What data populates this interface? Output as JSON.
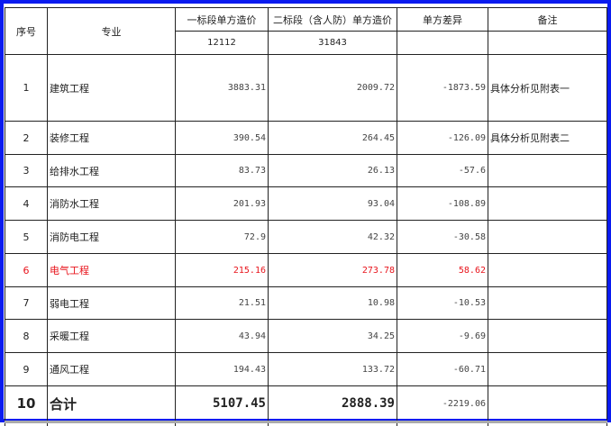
{
  "headers": {
    "seq": "序号",
    "specialty": "专业",
    "section1": "一标段单方造价",
    "section2": "二标段（含人防）单方造价",
    "diff": "单方差异",
    "remark": "备注"
  },
  "areas": {
    "section1": "12112",
    "section2": "31843"
  },
  "rows": [
    {
      "seq": "1",
      "name": "建筑工程",
      "s1": "3883.31",
      "s2": "2009.72",
      "diff": "-1873.59",
      "remark": "具体分析见附表一"
    },
    {
      "seq": "2",
      "name": "装修工程",
      "s1": "390.54",
      "s2": "264.45",
      "diff": "-126.09",
      "remark": "具体分析见附表二"
    },
    {
      "seq": "3",
      "name": "给排水工程",
      "s1": "83.73",
      "s2": "26.13",
      "diff": "-57.6",
      "remark": ""
    },
    {
      "seq": "4",
      "name": "消防水工程",
      "s1": "201.93",
      "s2": "93.04",
      "diff": "-108.89",
      "remark": ""
    },
    {
      "seq": "5",
      "name": "消防电工程",
      "s1": "72.9",
      "s2": "42.32",
      "diff": "-30.58",
      "remark": ""
    },
    {
      "seq": "6",
      "name": "电气工程",
      "s1": "215.16",
      "s2": "273.78",
      "diff": "58.62",
      "remark": ""
    },
    {
      "seq": "7",
      "name": "弱电工程",
      "s1": "21.51",
      "s2": "10.98",
      "diff": "-10.53",
      "remark": ""
    },
    {
      "seq": "8",
      "name": "采暖工程",
      "s1": "43.94",
      "s2": "34.25",
      "diff": "-9.69",
      "remark": ""
    },
    {
      "seq": "9",
      "name": "通风工程",
      "s1": "194.43",
      "s2": "133.72",
      "diff": "-60.71",
      "remark": ""
    }
  ],
  "total": {
    "seq": "10",
    "name": "合计",
    "s1": "5107.45",
    "s2": "2888.39",
    "diff": "-2219.06",
    "remark": ""
  },
  "colors": {
    "border": "#0a1bf0",
    "highlight_row": "#e8141c"
  }
}
